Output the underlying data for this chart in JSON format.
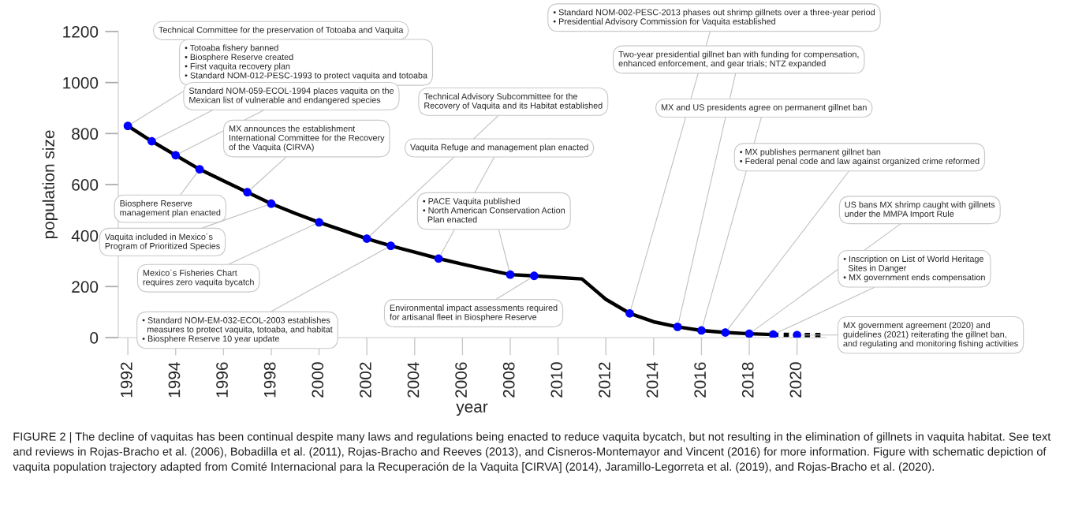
{
  "chart_data": {
    "type": "line",
    "xlabel": "year",
    "ylabel": "population size",
    "xlim": [
      1991.6,
      2021.2
    ],
    "ylim": [
      0,
      1200
    ],
    "xticks": [
      1992,
      1994,
      1996,
      1998,
      2000,
      2002,
      2004,
      2006,
      2008,
      2010,
      2012,
      2014,
      2016,
      2018,
      2020
    ],
    "yticks": [
      0,
      200,
      400,
      600,
      800,
      1000,
      1200
    ],
    "grid": false,
    "legend": false,
    "series": [
      {
        "type": "line",
        "color": "#000000",
        "line_style": "solid",
        "marker": "none",
        "x": [
          1992,
          1993,
          1994,
          1995,
          1996,
          1997,
          1998,
          1999,
          2000,
          2001,
          2002,
          2003,
          2004,
          2005,
          2006,
          2007,
          2008,
          2009,
          2010,
          2011,
          2012,
          2013,
          2014,
          2015,
          2016,
          2017,
          2018,
          2019
        ],
        "values": [
          830,
          770,
          715,
          660,
          615,
          570,
          525,
          487,
          452,
          420,
          388,
          360,
          335,
          310,
          288,
          267,
          247,
          242,
          236,
          230,
          150,
          95,
          62,
          42,
          28,
          20,
          15,
          12
        ]
      },
      {
        "type": "scatter",
        "color": "#0000ff",
        "marker": "circle",
        "x": [
          1992,
          1993,
          1994,
          1995,
          1997,
          1998,
          2000,
          2002,
          2003,
          2005,
          2008,
          2009,
          2013,
          2015,
          2016,
          2017,
          2018,
          2019,
          2020
        ],
        "values": [
          830,
          770,
          715,
          660,
          570,
          525,
          452,
          388,
          360,
          310,
          247,
          242,
          95,
          42,
          28,
          20,
          15,
          12,
          10
        ]
      },
      {
        "type": "line",
        "color": "#000000",
        "line_style": "dotted",
        "marker": "none",
        "x": [
          2019,
          2020,
          2021
        ],
        "values": [
          12,
          10,
          10
        ]
      }
    ],
    "annotations": [
      {
        "text": "Technical Committee for the preservation of Totoaba and Vaquita",
        "x": 1992,
        "y": 830
      },
      {
        "text": "• Totoaba fishery banned\n• Biosphere Reserve created\n• First vaquita recovery plan\n• Standard NOM-012-PESC-1993 to protect vaquita and totoaba",
        "x": 1993,
        "y": 770
      },
      {
        "text": "Standard NOM-059-ECOL-1994 places vaquita on the\nMexican list of vulnerable and endangered species",
        "x": 1994,
        "y": 715
      },
      {
        "text": "Biosphere Reserve\nmanagement plan enacted",
        "x": 1995,
        "y": 660
      },
      {
        "text": "MX announces the establishment\nInternational Committee for the Recovery\nof the Vaquita (CIRVA)",
        "x": 1997,
        "y": 570
      },
      {
        "text": "Vaquita included in Mexico´s\nProgram of Prioritized Species",
        "x": 1998,
        "y": 525
      },
      {
        "text": "Mexico´s Fisheries Chart\nrequires zero vaquita bycatch",
        "x": 2000,
        "y": 452
      },
      {
        "text": "Technical Advisory Subcommittee for the\nRecovery of Vaquita and its Habitat established",
        "x": 2002,
        "y": 388
      },
      {
        "text": "• Standard NOM-EM-032-ECOL-2003 establishes\n  measures to protect vaquita, totoaba, and habitat\n• Biosphere Reserve 10 year update",
        "x": 2003,
        "y": 360
      },
      {
        "text": "Vaquita Refuge and management plan enacted",
        "x": 2005,
        "y": 310
      },
      {
        "text": "• PACE Vaquita published\n• North American Conservation Action\n  Plan enacted",
        "x": 2008,
        "y": 247
      },
      {
        "text": "Environmental impact assessments required\nfor artisanal fleet in Biosphere Reserve",
        "x": 2009,
        "y": 242
      },
      {
        "text": "• Standard NOM-002-PESC-2013 phases out shrimp gillnets over a three-year period\n• Presidential Advisory Commission for Vaquita established",
        "x": 2013,
        "y": 95
      },
      {
        "text": "Two-year presidential gillnet ban with funding for compensation,\nenhanced enforcement, and gear trials; NTZ expanded",
        "x": 2015,
        "y": 42
      },
      {
        "text": "MX and US presidents agree on permanent gillnet ban",
        "x": 2016,
        "y": 28
      },
      {
        "text": "• MX publishes permanent gillnet ban\n• Federal penal code and law against organized crime reformed",
        "x": 2017,
        "y": 20
      },
      {
        "text": "US bans MX shrimp caught with gillnets\nunder the MMPA Import Rule",
        "x": 2018,
        "y": 15
      },
      {
        "text": "• Inscription on List of World Heritage\n  Sites in Danger\n• MX government ends compensation",
        "x": 2019,
        "y": 12
      },
      {
        "text": "MX government agreement (2020) and\nguidelines (2021) reiterating the gillnet ban,\nand regulating and monitoring fishing activities",
        "x": 2020,
        "y": 10
      },
      "FIGURE 2 | The decline of vaquitas has been continual despite many laws and regulations being enacted to reduce vaquita bycatch, but not resulting in the elimination of gillnets in vaquita habitat. See text and reviews in Rojas-Bracho et al. (2006), Bobadilla et al. (2011), Rojas-Bracho and Reeves (2013), and Cisneros-Montemayor and Vincent (2016) for more information. Figure with schematic depiction of vaquita population trajectory adapted from Comité Internacional para la Recuperación de la Vaquita [CIRVA] (2014), Jaramillo-Legorreta et al. (2019), and Rojas-Bracho et al. (2020)."
    ]
  }
}
